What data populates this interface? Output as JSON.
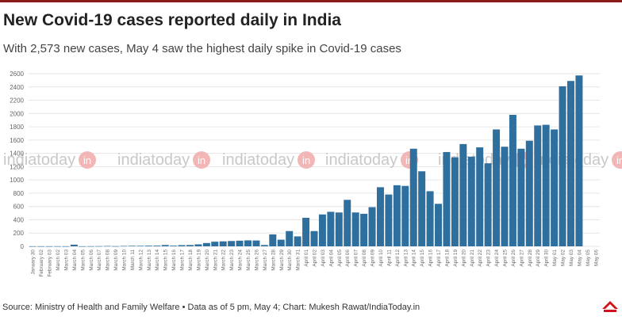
{
  "header": {
    "title": "New Covid-19 cases reported daily in India",
    "subtitle": "With 2,573 new cases, May 4 saw the highest daily spike in Covid-19 cases"
  },
  "watermark": {
    "text": "indiatoday",
    "suffix": "in"
  },
  "footer": {
    "source": "Source: Ministry of Health and Family Welfare • Data as of 5 pm, May 4; Chart: Mukesh Rawat/IndiaToday.in"
  },
  "colors": {
    "bar": "#2e6f9e",
    "accent": "#8b1a1a",
    "grid": "#e6e6e6",
    "watermark_badge": "#f3b6b6"
  },
  "chart_data": {
    "type": "bar",
    "title": "New Covid-19 cases reported daily in India",
    "xlabel": "",
    "ylabel": "",
    "ylim": [
      0,
      2600
    ],
    "yticks": [
      0,
      200,
      400,
      600,
      800,
      1000,
      1200,
      1400,
      1600,
      1800,
      2000,
      2200,
      2400,
      2600
    ],
    "grid": true,
    "categories": [
      "January 30",
      "February 02",
      "February 03",
      "March 02",
      "March 03",
      "March 04",
      "March 05",
      "March 06",
      "March 07",
      "March 08",
      "March 09",
      "March 10",
      "March 11",
      "March 12",
      "March 13",
      "March 14",
      "March 15",
      "March 16",
      "March 17",
      "March 18",
      "March 19",
      "March 20",
      "March 21",
      "March 22",
      "March 23",
      "March 24",
      "March 25",
      "March 26",
      "March 27",
      "March 28",
      "March 29",
      "March 30",
      "March 31",
      "April 01",
      "April 02",
      "April 03",
      "April 04",
      "April 05",
      "April 06",
      "April 07",
      "April 08",
      "April 09",
      "April 10",
      "April 11",
      "April 12",
      "April 13",
      "April 14",
      "April 15",
      "April 16",
      "April 17",
      "April 18",
      "April 19",
      "April 20",
      "April 21",
      "April 22",
      "April 23",
      "April 24",
      "April 25",
      "April 26",
      "April 27",
      "April 28",
      "April 29",
      "April 30",
      "May 01",
      "May 02",
      "May 03",
      "May 04",
      "May 05",
      "May 06"
    ],
    "values": [
      1,
      1,
      1,
      2,
      1,
      25,
      1,
      2,
      3,
      5,
      3,
      6,
      8,
      8,
      10,
      10,
      20,
      10,
      18,
      20,
      30,
      50,
      70,
      75,
      80,
      85,
      90,
      88,
      20,
      180,
      100,
      230,
      150,
      430,
      230,
      480,
      520,
      510,
      700,
      510,
      490,
      590,
      890,
      780,
      920,
      910,
      1470,
      1130,
      830,
      640,
      1420,
      1340,
      1540,
      1350,
      1490,
      1250,
      1760,
      1500,
      1980,
      1470,
      1590,
      1820,
      1830,
      1760,
      2410,
      2490,
      2573,
      0,
      0
    ]
  }
}
